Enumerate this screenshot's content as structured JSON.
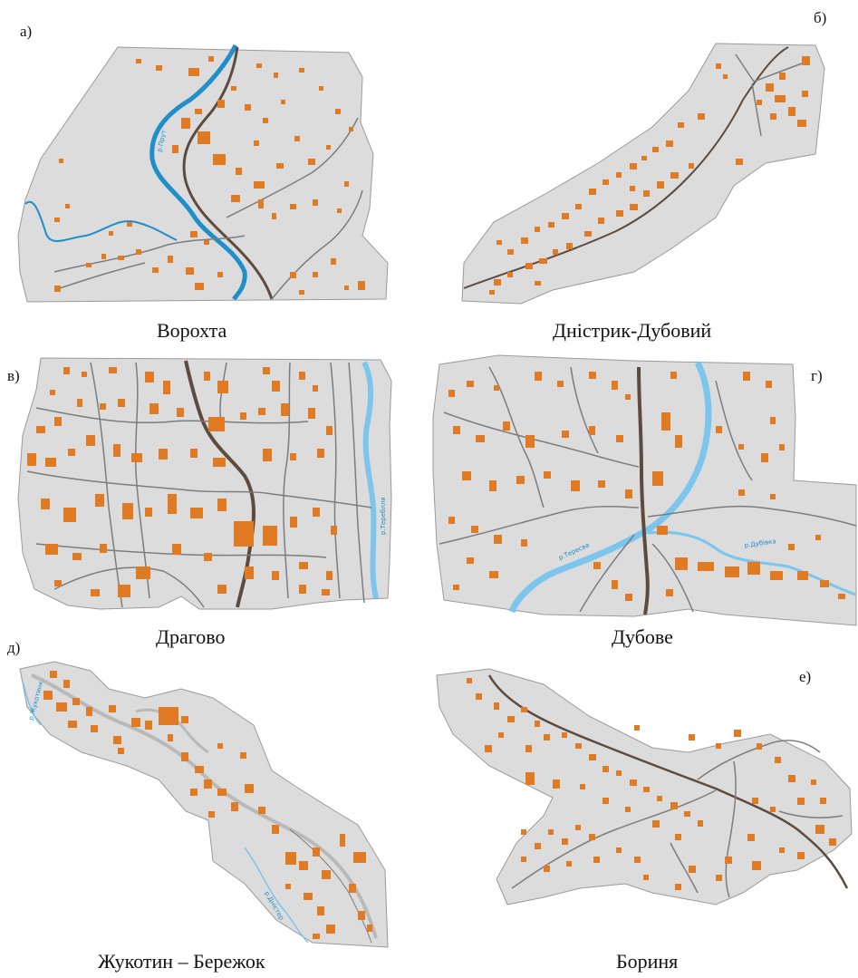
{
  "colors": {
    "territory": "#dcdcdc",
    "territory_edge": "#9a9a9a",
    "building": "#e07b24",
    "road_main": "#5e4b3f",
    "road_secondary": "#7d7d7d",
    "river_a": "#1f8fc9",
    "river_light": "#7cc5ec",
    "railway": "#b9b9b9"
  },
  "panels": [
    {
      "id": "a",
      "letter": "а)",
      "caption": "Ворохта",
      "river_label": "р.Прут"
    },
    {
      "id": "b",
      "letter": "б)",
      "caption": "Дністрик-Дубовий"
    },
    {
      "id": "c",
      "letter": "в)",
      "caption": "Драгово",
      "river_label": "р.Тереблля"
    },
    {
      "id": "d",
      "letter": "г)",
      "caption": "Дубове",
      "river_label": "р.Тересва",
      "river_label_2": "р.Дубівка"
    },
    {
      "id": "e",
      "letter": "д)",
      "caption": "Жукотин – Бережок",
      "river_label": "р.Жукотинка",
      "river_label_2": "р.Дністер"
    },
    {
      "id": "f",
      "letter": "е)",
      "caption": "Бориня"
    }
  ]
}
